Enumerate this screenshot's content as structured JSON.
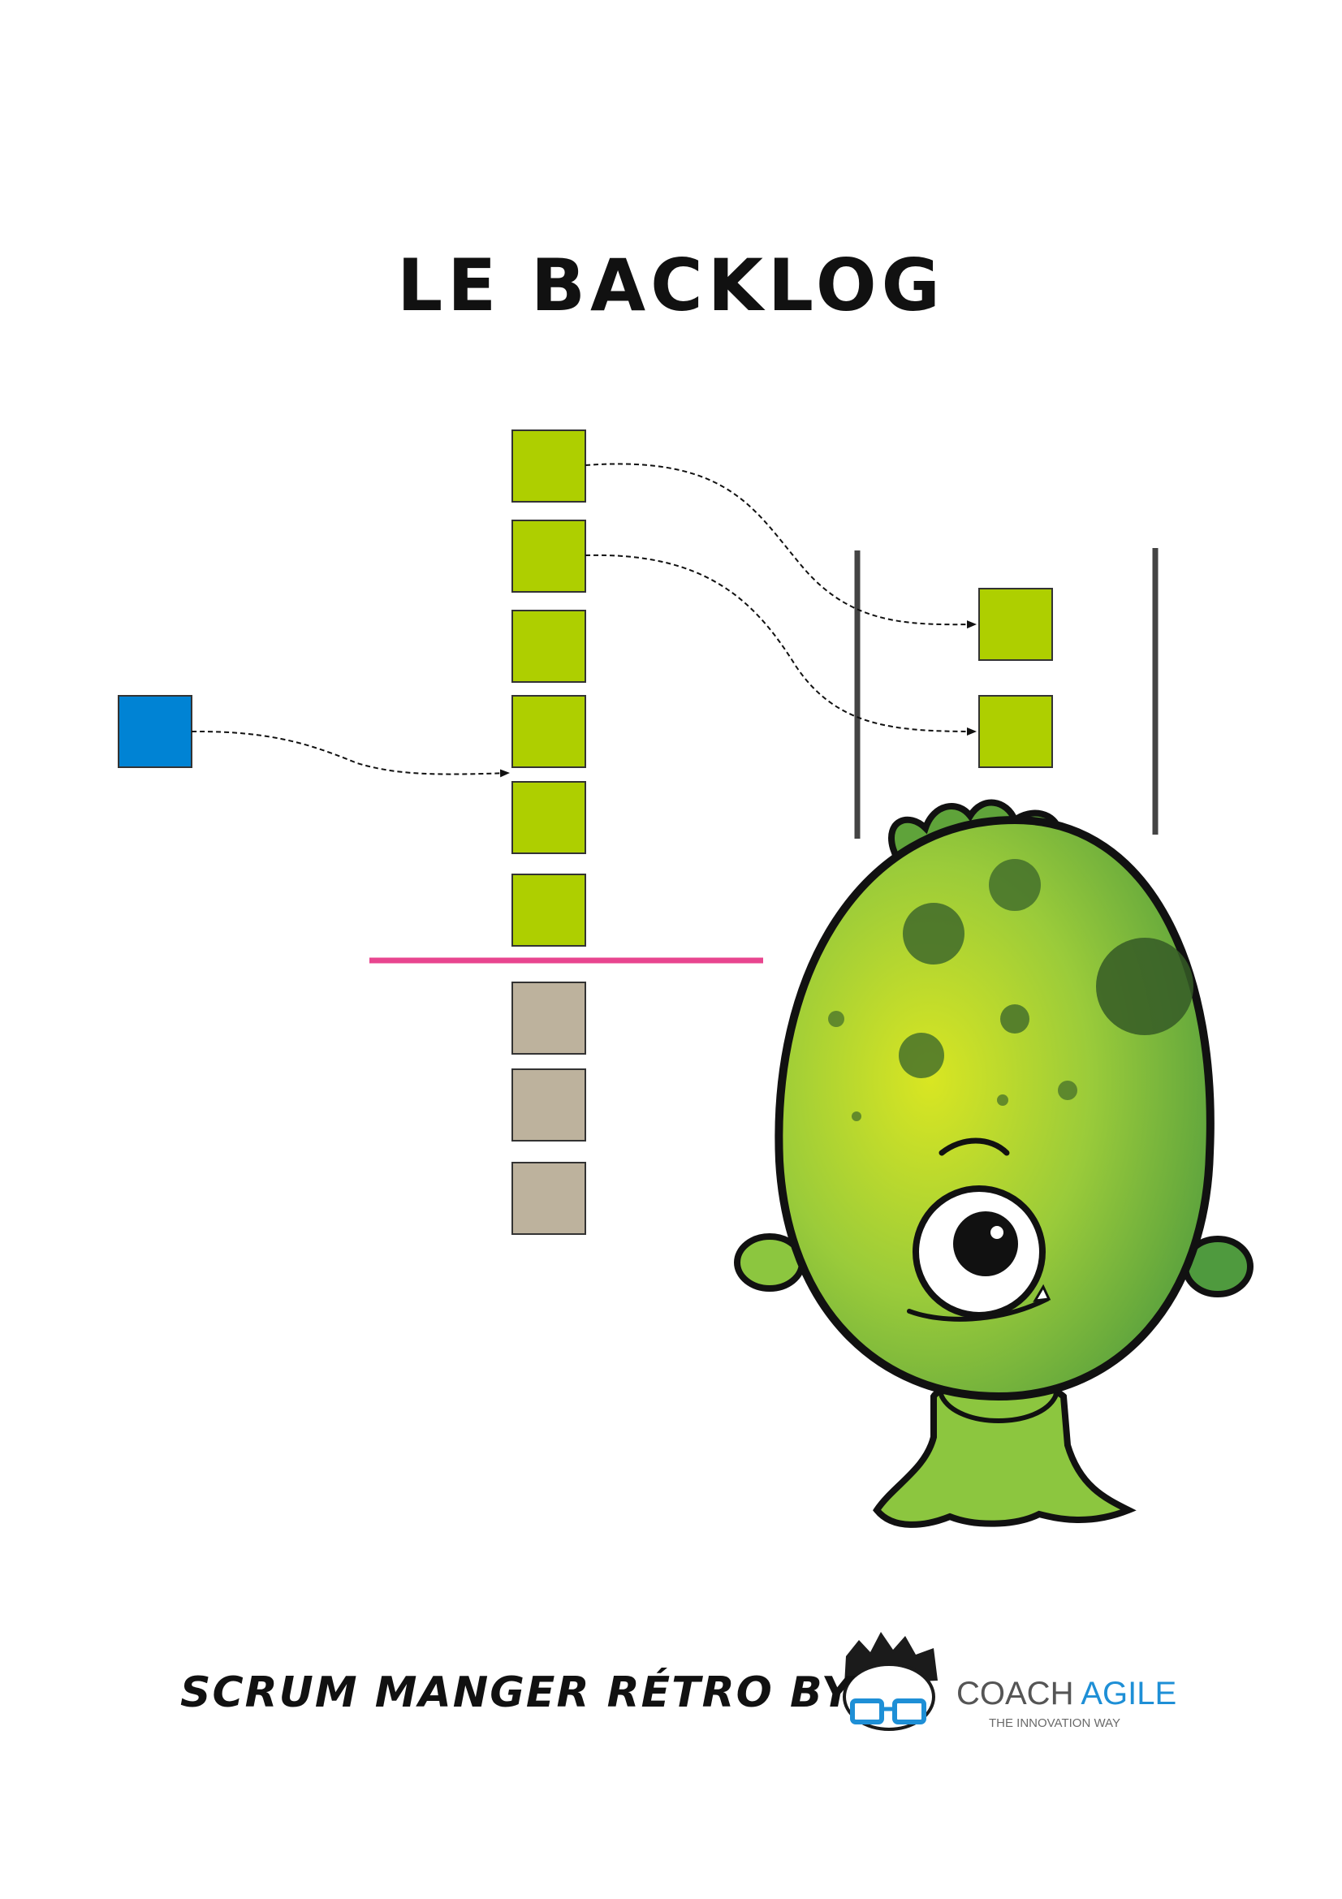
{
  "title": "LE BACKLOG",
  "colors": {
    "ready_item": "#aecf00",
    "new_item": "#0083d4",
    "unrefined_item": "#bdb29d",
    "cut_line": "#e8458f",
    "sprint_bar": "#444444",
    "monster_body": "#8cc63f"
  },
  "footer": {
    "text": "SCRUM MANGER RÉTRO BY",
    "brand_first": "COACH",
    "brand_second": "AGILE",
    "brand_tagline": "THE INNOVATION WAY"
  },
  "icons": {
    "logo": "nerd-glasses-logo-icon",
    "mascot": "one-eyed-green-monster"
  }
}
